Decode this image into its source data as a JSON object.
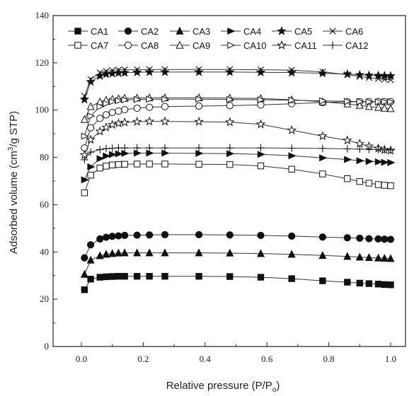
{
  "chart_data": {
    "type": "line",
    "xlabel": "Relative pressure (P/P",
    "xlabel_sub": "o",
    "xlabel_close": ")",
    "ylabel": "Adsorbed volume  (cm",
    "ylabel_sup": "3",
    "ylabel_rest": "/g STP)",
    "xlim": [
      0.0,
      1.0
    ],
    "ylim": [
      0,
      140
    ],
    "xticks": [
      0.0,
      0.2,
      0.4,
      0.6,
      0.8,
      1.0
    ],
    "xtick_labels": [
      "0.0",
      "0.2",
      "0.4",
      "0.6",
      "0.8",
      "1.0"
    ],
    "yticks": [
      0,
      20,
      40,
      60,
      80,
      100,
      120,
      140
    ],
    "ytick_labels": [
      "0",
      "20",
      "40",
      "60",
      "80",
      "100",
      "120",
      "140"
    ],
    "legend_position": "top",
    "x": [
      0.01,
      0.03,
      0.06,
      0.08,
      0.1,
      0.12,
      0.14,
      0.18,
      0.22,
      0.27,
      0.38,
      0.48,
      0.58,
      0.68,
      0.78,
      0.86,
      0.9,
      0.93,
      0.96,
      0.98,
      1.0
    ],
    "series": [
      {
        "name": "CA1",
        "marker": "square-filled",
        "values": [
          24,
          28.5,
          29.3,
          29.5,
          29.6,
          29.7,
          29.7,
          29.7,
          29.7,
          29.7,
          29.7,
          29.6,
          29.3,
          28.7,
          27.8,
          27.2,
          26.8,
          26.6,
          26.4,
          26.2,
          26.1
        ]
      },
      {
        "name": "CA2",
        "marker": "circle-filled",
        "values": [
          37.5,
          43,
          45.5,
          46.2,
          46.6,
          46.8,
          47,
          47.1,
          47.2,
          47.3,
          47.3,
          47.2,
          47,
          46.7,
          46.3,
          46,
          45.8,
          45.6,
          45.5,
          45.4,
          45.3
        ]
      },
      {
        "name": "CA3",
        "marker": "triangle-filled",
        "values": [
          30.5,
          36.5,
          38.4,
          39,
          39.3,
          39.5,
          39.6,
          39.6,
          39.6,
          39.6,
          39.6,
          39.5,
          39.3,
          39,
          38.5,
          38.1,
          37.8,
          37.6,
          37.4,
          37.3,
          37.2
        ]
      },
      {
        "name": "CA4",
        "marker": "triangle-right-filled",
        "values": [
          70.5,
          76,
          79.5,
          80.6,
          81.2,
          81.5,
          81.7,
          81.8,
          81.8,
          81.8,
          81.7,
          81.6,
          81.3,
          80.7,
          79.8,
          79.1,
          78.6,
          78.3,
          78.1,
          77.9,
          77.8
        ]
      },
      {
        "name": "CA5",
        "marker": "star-filled",
        "values": [
          104.5,
          112,
          114.5,
          115.2,
          115.5,
          115.7,
          115.8,
          116,
          116.1,
          116.1,
          116.1,
          116.1,
          116,
          115.9,
          115.6,
          115.2,
          114.9,
          114.7,
          114.6,
          114.5,
          114.4
        ]
      },
      {
        "name": "CA6",
        "marker": "cross",
        "values": [
          106,
          113,
          115.8,
          116.5,
          116.8,
          117,
          117.1,
          117.1,
          117.2,
          117.2,
          117.2,
          117.2,
          117.1,
          116.9,
          116.2,
          115,
          114.2,
          113.7,
          113.3,
          113,
          112.8
        ]
      },
      {
        "name": "CA7",
        "marker": "square-open",
        "values": [
          65,
          72.5,
          75.5,
          76.3,
          76.8,
          77,
          77.1,
          77.2,
          77.2,
          77.2,
          77.1,
          77,
          76.4,
          75,
          73,
          71,
          69.8,
          69.1,
          68.5,
          68.2,
          68
        ]
      },
      {
        "name": "CA8",
        "marker": "circle-open",
        "values": [
          84,
          92.5,
          96.5,
          98,
          99,
          99.6,
          100.2,
          100.8,
          101.2,
          101.5,
          101.7,
          101.9,
          102.2,
          102.7,
          103.2,
          103.5,
          103.6,
          103.6,
          103.6,
          103.6,
          103.6
        ]
      },
      {
        "name": "CA9",
        "marker": "triangle-open",
        "values": [
          96,
          101.5,
          103.5,
          104.2,
          104.6,
          104.8,
          105,
          105.1,
          105.2,
          105.2,
          105.2,
          105.1,
          104.9,
          104.4,
          103.5,
          102.6,
          102,
          101.5,
          101.1,
          100.8,
          100.6
        ]
      },
      {
        "name": "CA10",
        "marker": "triangle-right-open",
        "values": [
          89,
          97.5,
          101.5,
          102.8,
          103.6,
          104,
          104.3,
          104.5,
          104.6,
          104.6,
          104.6,
          104.5,
          104.4,
          104.2,
          103.9,
          103.7,
          103.6,
          103.5,
          103.5,
          103.5,
          103.5
        ]
      },
      {
        "name": "CA11",
        "marker": "star-open",
        "values": [
          81,
          87.5,
          91,
          92.7,
          93.8,
          94.4,
          94.8,
          95.1,
          95.2,
          95.2,
          95.1,
          94.9,
          94,
          91.5,
          89,
          87.2,
          85.8,
          84.7,
          83.8,
          83.2,
          82.9
        ]
      },
      {
        "name": "CA12",
        "marker": "plus",
        "values": [
          79,
          82.2,
          83.3,
          83.7,
          83.9,
          84,
          84,
          84,
          84,
          84,
          84,
          84,
          84,
          83.9,
          83.8,
          83.6,
          83.5,
          83.4,
          83.3,
          83.2,
          83.2
        ]
      }
    ]
  }
}
